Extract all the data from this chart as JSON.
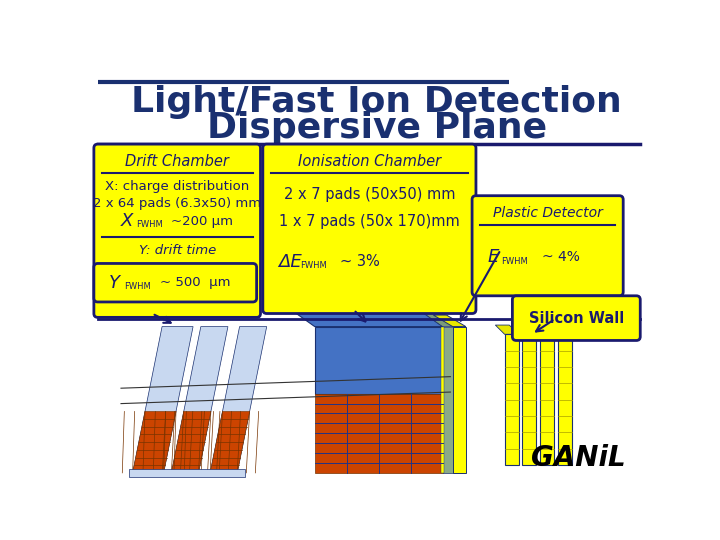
{
  "title_line1": "Light/Fast Ion Detection",
  "title_line2": "Dispersive Plane",
  "title_color": "#1a3070",
  "bg_color": "#ffffff",
  "box_fill": "#ffff00",
  "box_edge": "#1a1a6e",
  "box_text_color": "#1a1a6e",
  "drift_chamber_title": "Drift Chamber",
  "ionisation_title": "Ionisation Chamber",
  "plastic_title": "Plastic Detector",
  "silicon_label": "Silicon Wall",
  "ganil_text": "GANiL",
  "sep_color": "#1a1a6e",
  "blue_dark": "#1a3070",
  "blue_med": "#4472c4",
  "blue_light": "#a0b8e0",
  "blue_pale": "#c8d8f0",
  "orange_dark": "#cc4400",
  "orange_med": "#dd6622",
  "orange_light": "#cc8866",
  "green_gray": "#8aaa88",
  "yellow_bright": "#ffff00",
  "yellow_mid": "#e8e800",
  "arrow_color": "#1a1a6e"
}
